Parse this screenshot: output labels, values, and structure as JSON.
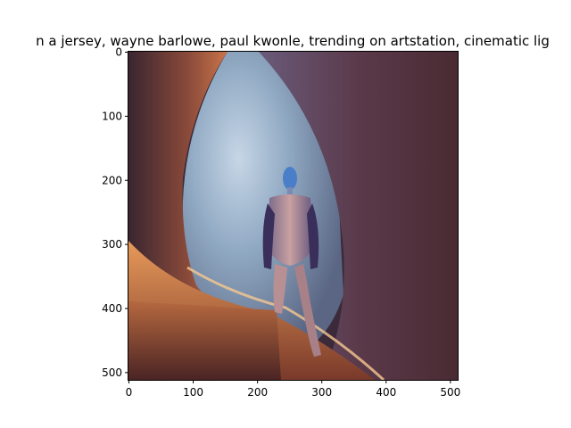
{
  "chart_data": {
    "type": "image",
    "title": "n a jersey,  wayne barlowe, paul kwonle,  trending on artstation, cinematic lig",
    "xlabel": "",
    "ylabel": "",
    "xlim": [
      0,
      512
    ],
    "ylim": [
      512,
      0
    ],
    "x_ticks": [
      0,
      100,
      200,
      300,
      400,
      500
    ],
    "y_ticks": [
      0,
      100,
      200,
      300,
      400,
      500
    ],
    "grid": false,
    "image_description_colors": {
      "cave_dark": "#3b2a3a",
      "cave_rim": "#b8603a",
      "glow": "#f0b070",
      "sky": "#a8c0d8",
      "figure_head": "#4a7ec8"
    }
  }
}
